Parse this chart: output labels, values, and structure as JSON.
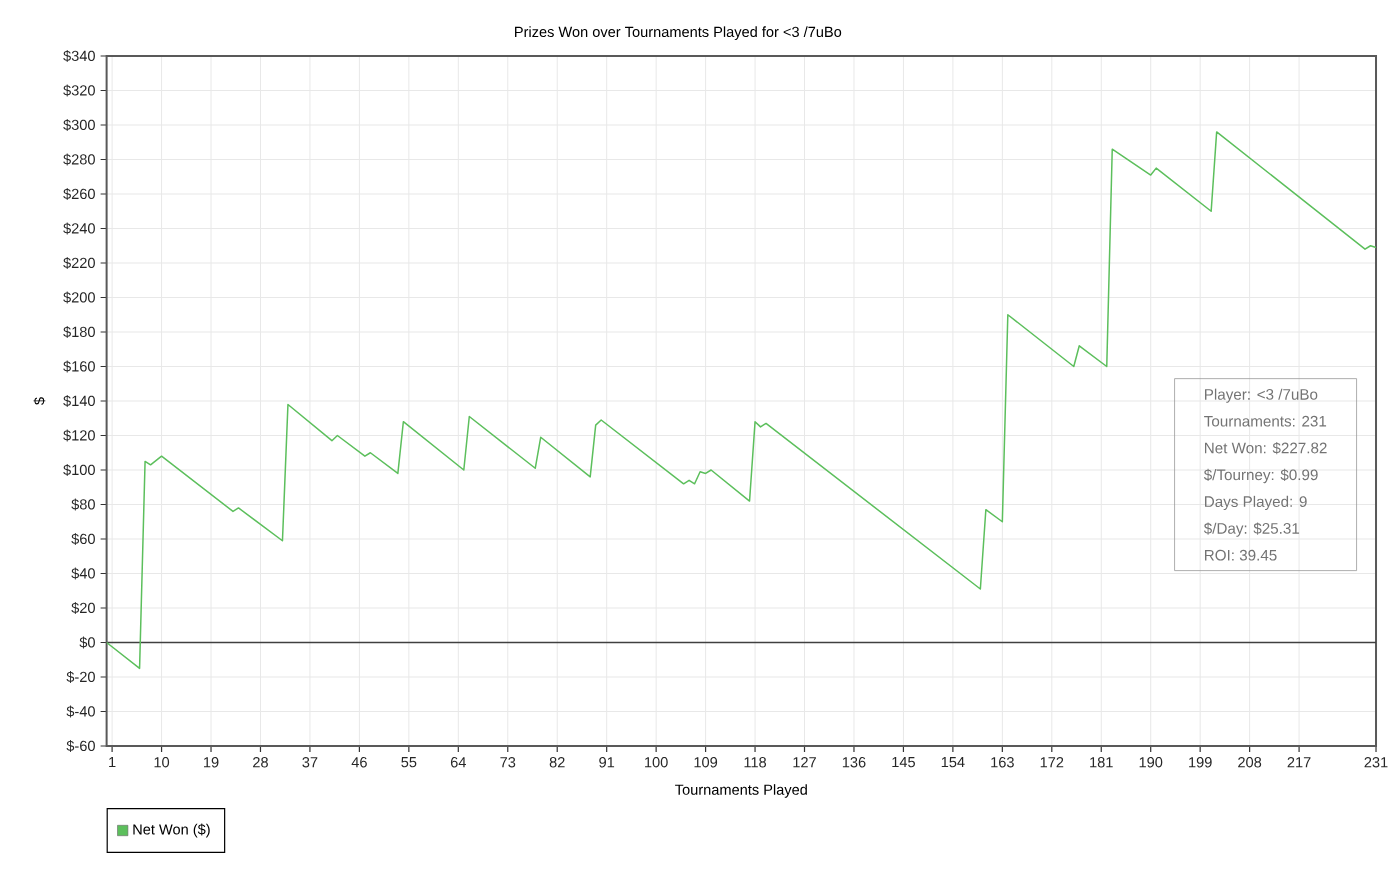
{
  "chart_data": {
    "type": "line",
    "title": "Prizes Won over Tournaments Played for <3 /7uBo",
    "xlabel": "Tournaments Played",
    "ylabel": "$",
    "x": [
      0,
      6,
      7,
      8,
      10,
      23,
      24,
      32,
      33,
      41,
      42,
      47,
      48,
      53,
      54,
      65,
      66,
      78,
      79,
      88,
      89,
      90,
      105,
      106,
      107,
      108,
      109,
      110,
      117,
      118,
      119,
      120,
      159,
      160,
      163,
      164,
      176,
      177,
      182,
      183,
      190,
      191,
      201,
      202,
      229,
      230,
      231
    ],
    "series": [
      {
        "name": "Net Won ($)",
        "color": "#5cbf5c",
        "values": [
          0,
          -15,
          105,
          103,
          108,
          76,
          78,
          59,
          138,
          117,
          120,
          108,
          110,
          98,
          128,
          100,
          131,
          101,
          119,
          96,
          126,
          129,
          92,
          94,
          92,
          99,
          98,
          100,
          82,
          128,
          125,
          127,
          31,
          77,
          70,
          190,
          160,
          172,
          160,
          286,
          271,
          275,
          250,
          296,
          228,
          230,
          229
        ]
      }
    ],
    "xlim": [
      0,
      231
    ],
    "ylim": [
      -60,
      340
    ],
    "xticks": [
      1,
      10,
      19,
      28,
      37,
      46,
      55,
      64,
      73,
      82,
      91,
      100,
      109,
      118,
      127,
      136,
      145,
      154,
      163,
      172,
      181,
      190,
      199,
      208,
      217,
      231
    ],
    "yticks": [
      {
        "value": -60,
        "label": "$-60"
      },
      {
        "value": -40,
        "label": "$-40"
      },
      {
        "value": -20,
        "label": "$-20"
      },
      {
        "value": 0,
        "label": "$0"
      },
      {
        "value": 20,
        "label": "$20"
      },
      {
        "value": 40,
        "label": "$40"
      },
      {
        "value": 60,
        "label": "$60"
      },
      {
        "value": 80,
        "label": "$80"
      },
      {
        "value": 100,
        "label": "$100"
      },
      {
        "value": 120,
        "label": "$120"
      },
      {
        "value": 140,
        "label": "$140"
      },
      {
        "value": 160,
        "label": "$160"
      },
      {
        "value": 180,
        "label": "$180"
      },
      {
        "value": 200,
        "label": "$200"
      },
      {
        "value": 220,
        "label": "$220"
      },
      {
        "value": 240,
        "label": "$240"
      },
      {
        "value": 260,
        "label": "$260"
      },
      {
        "value": 280,
        "label": "$280"
      },
      {
        "value": 300,
        "label": "$300"
      },
      {
        "value": 320,
        "label": "$320"
      },
      {
        "value": 340,
        "label": "$340"
      }
    ],
    "grid": true,
    "legend": "bottom left",
    "line_style": "solid",
    "ref_lines": [
      {
        "axis": "y",
        "value": 0,
        "color": "#404040"
      }
    ],
    "annotations": [
      "Player: <3 /7uBo",
      "Tournaments: 231",
      "Net Won: $227.82",
      "$/Tourney: $0.99",
      "Days Played: 9",
      "$/Day: $25.31",
      "ROI: 39.45"
    ]
  }
}
